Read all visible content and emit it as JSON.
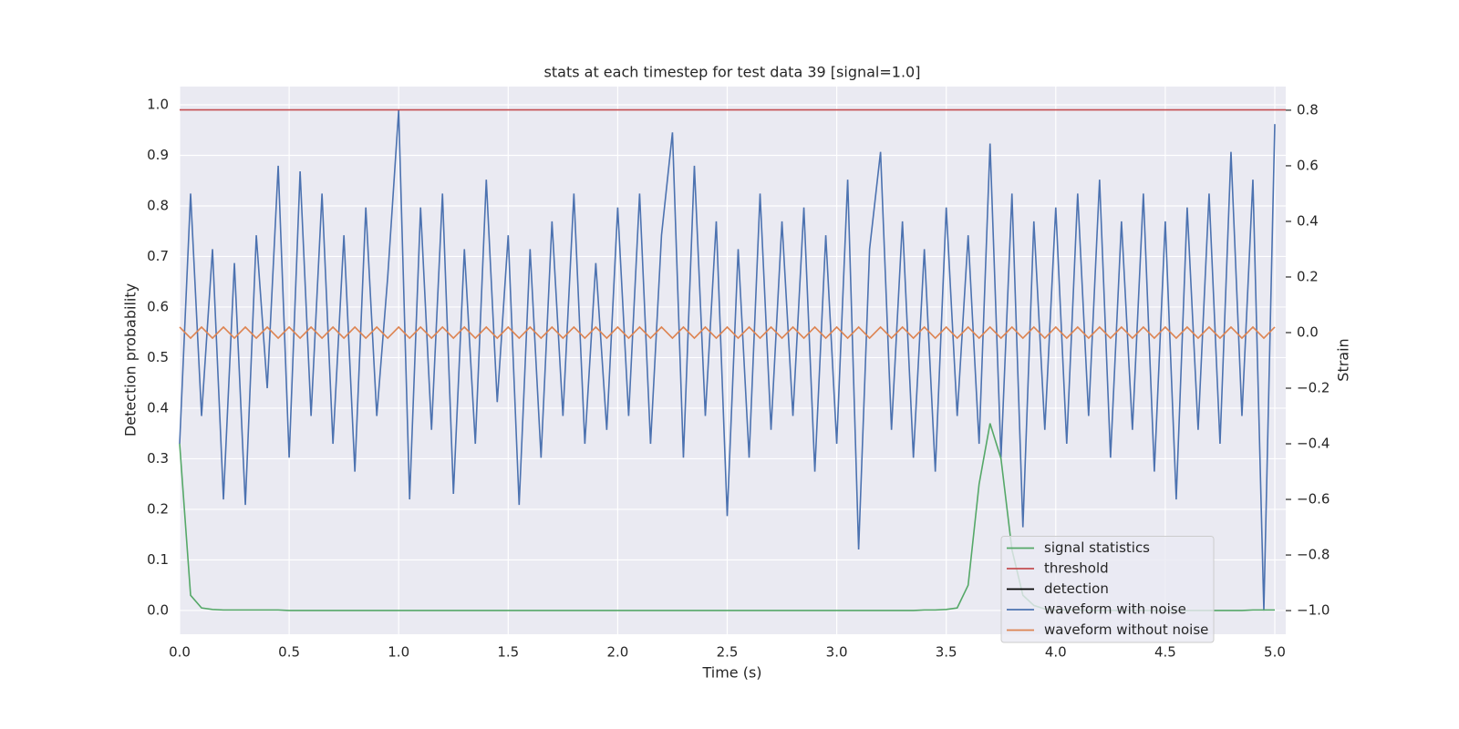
{
  "chart_data": {
    "type": "line",
    "title": "stats at each timestep for test data 39 [signal=1.0]",
    "xlabel": "Time (s)",
    "ylabel": "Detection probability",
    "y2label": "Strain",
    "xlim": [
      0,
      5.05
    ],
    "ylim": [
      -0.047,
      1.036
    ],
    "y2lim": [
      -1.085,
      0.885
    ],
    "xticks": [
      {
        "value": 0,
        "label": "0.0"
      },
      0.5,
      {
        "value": 1,
        "label": "1.0"
      },
      1.5,
      {
        "value": 2,
        "label": "2.0"
      },
      2.5,
      {
        "value": 3,
        "label": "3.0"
      },
      3.5,
      {
        "value": 4,
        "label": "4.0"
      },
      4.5,
      {
        "value": 5,
        "label": "5.0"
      }
    ],
    "yticks": [
      {
        "value": 0,
        "label": "0.0"
      },
      0.1,
      0.2,
      0.3,
      0.4,
      0.5,
      0.6,
      0.7,
      0.8,
      0.9,
      {
        "value": 1,
        "label": "1.0"
      }
    ],
    "y2ticks": [
      {
        "value": -1,
        "label": "−1.0"
      },
      {
        "value": -0.8,
        "label": "−0.8"
      },
      {
        "value": -0.6,
        "label": "−0.6"
      },
      {
        "value": -0.4,
        "label": "−0.4"
      },
      {
        "value": -0.2,
        "label": "−0.2"
      },
      {
        "value": 0,
        "label": "0.0"
      },
      0.2,
      0.4,
      0.6,
      0.8
    ],
    "grid": true,
    "legend": "lower right",
    "x": [
      0,
      0.05,
      0.1,
      0.15,
      0.2,
      0.25,
      0.3,
      0.35,
      0.4,
      0.45,
      0.5,
      0.55,
      0.6,
      0.65,
      0.7,
      0.75,
      0.8,
      0.85,
      0.9,
      0.95,
      1,
      1.05,
      1.1,
      1.15,
      1.2,
      1.25,
      1.3,
      1.35,
      1.4,
      1.45,
      1.5,
      1.55,
      1.6,
      1.65,
      1.7,
      1.75,
      1.8,
      1.85,
      1.9,
      1.95,
      2,
      2.05,
      2.1,
      2.15,
      2.2,
      2.25,
      2.3,
      2.35,
      2.4,
      2.45,
      2.5,
      2.55,
      2.6,
      2.65,
      2.7,
      2.75,
      2.8,
      2.85,
      2.9,
      2.95,
      3,
      3.05,
      3.1,
      3.15,
      3.2,
      3.25,
      3.3,
      3.35,
      3.4,
      3.45,
      3.5,
      3.55,
      3.6,
      3.65,
      3.7,
      3.75,
      3.8,
      3.85,
      3.9,
      3.95,
      4,
      4.05,
      4.1,
      4.15,
      4.2,
      4.25,
      4.3,
      4.35,
      4.4,
      4.45,
      4.5,
      4.55,
      4.6,
      4.65,
      4.7,
      4.75,
      4.8,
      4.85,
      4.9,
      4.95,
      5
    ],
    "series": [
      {
        "name": "signal statistics",
        "color": "#55a868",
        "values": [
          0.33,
          0.03,
          0.005,
          0.002,
          0.001,
          0.001,
          0.001,
          0.001,
          0.001,
          0.001,
          0,
          0,
          0,
          0,
          0,
          0,
          0,
          0,
          0,
          0,
          0,
          0,
          0,
          0,
          0,
          0,
          0,
          0,
          0,
          0,
          0,
          0,
          0,
          0,
          0,
          0,
          0,
          0,
          0,
          0,
          0,
          0,
          0,
          0,
          0,
          0,
          0,
          0,
          0,
          0,
          0,
          0,
          0,
          0,
          0,
          0,
          0,
          0,
          0,
          0,
          0,
          0,
          0,
          0,
          0,
          0,
          0,
          0,
          0.001,
          0.001,
          0.002,
          0.005,
          0.05,
          0.25,
          0.37,
          0.3,
          0.12,
          0.03,
          0.01,
          0.003,
          0.001,
          0.001,
          0.001,
          0,
          0,
          0,
          0,
          0,
          0,
          0,
          0,
          0,
          0,
          0,
          0,
          0,
          0,
          0,
          0.001,
          0.001,
          0.001
        ]
      },
      {
        "name": "threshold",
        "color": "#c44e52",
        "x": [
          0,
          5.05
        ],
        "values": [
          0.99,
          0.99
        ]
      },
      {
        "name": "detection",
        "color": "#000000",
        "x": [],
        "values": []
      },
      {
        "name": "waveform with noise",
        "color": "#4c72b0",
        "axis": "y2",
        "values": [
          -0.4,
          0.5,
          -0.3,
          0.3,
          -0.6,
          0.25,
          -0.62,
          0.35,
          -0.2,
          0.6,
          -0.45,
          0.58,
          -0.3,
          0.5,
          -0.4,
          0.35,
          -0.5,
          0.45,
          -0.3,
          0.2,
          0.8,
          -0.6,
          0.45,
          -0.35,
          0.5,
          -0.58,
          0.3,
          -0.4,
          0.55,
          -0.25,
          0.35,
          -0.62,
          0.3,
          -0.45,
          0.4,
          -0.3,
          0.5,
          -0.4,
          0.25,
          -0.35,
          0.45,
          -0.3,
          0.5,
          -0.4,
          0.35,
          0.72,
          -0.45,
          0.6,
          -0.3,
          0.4,
          -0.66,
          0.3,
          -0.45,
          0.5,
          -0.35,
          0.4,
          -0.3,
          0.45,
          -0.5,
          0.35,
          -0.4,
          0.55,
          -0.78,
          0.3,
          0.65,
          -0.35,
          0.4,
          -0.45,
          0.3,
          -0.5,
          0.45,
          -0.3,
          0.35,
          -0.4,
          0.68,
          -0.45,
          0.5,
          -0.7,
          0.4,
          -0.35,
          0.45,
          -0.4,
          0.5,
          -0.3,
          0.55,
          -0.45,
          0.4,
          -0.35,
          0.5,
          -0.5,
          0.4,
          -0.6,
          0.45,
          -0.35,
          0.5,
          -0.4,
          0.65,
          -0.3,
          0.55,
          -1.0,
          0.75
        ]
      },
      {
        "name": "waveform without noise",
        "color": "#dd8452",
        "axis": "y2",
        "values": [
          0.02,
          -0.02,
          0.02,
          -0.02,
          0.02,
          -0.02,
          0.02,
          -0.02,
          0.02,
          -0.02,
          0.02,
          -0.02,
          0.02,
          -0.02,
          0.02,
          -0.02,
          0.02,
          -0.02,
          0.02,
          -0.02,
          0.02,
          -0.02,
          0.02,
          -0.02,
          0.02,
          -0.02,
          0.02,
          -0.02,
          0.02,
          -0.02,
          0.02,
          -0.02,
          0.02,
          -0.02,
          0.02,
          -0.02,
          0.02,
          -0.02,
          0.02,
          -0.02,
          0.02,
          -0.02,
          0.02,
          -0.02,
          0.02,
          -0.02,
          0.02,
          -0.02,
          0.02,
          -0.02,
          0.02,
          -0.02,
          0.02,
          -0.02,
          0.02,
          -0.02,
          0.02,
          -0.02,
          0.02,
          -0.02,
          0.02,
          -0.02,
          0.02,
          -0.02,
          0.02,
          -0.02,
          0.02,
          -0.02,
          0.02,
          -0.02,
          0.02,
          -0.02,
          0.02,
          -0.02,
          0.02,
          -0.02,
          0.02,
          -0.02,
          0.02,
          -0.02,
          0.02,
          -0.02,
          0.02,
          -0.02,
          0.02,
          -0.02,
          0.02,
          -0.02,
          0.02,
          -0.02,
          0.02,
          -0.02,
          0.02,
          -0.02,
          0.02,
          -0.02,
          0.02,
          -0.02,
          0.02,
          -0.02,
          0.02
        ]
      }
    ]
  }
}
